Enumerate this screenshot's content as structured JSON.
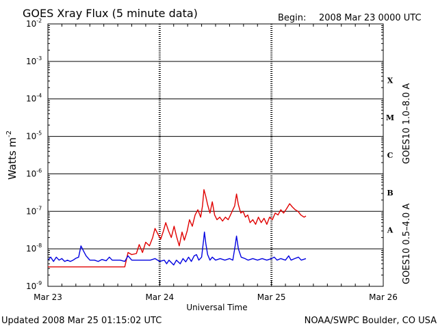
{
  "chart_data": {
    "type": "line",
    "title": "GOES Xray Flux (5 minute data)",
    "begin_label": "Begin:",
    "begin_value": "2008 Mar 23 0000 UTC",
    "xlabel": "Universal Time",
    "ylabel": "Watts m",
    "ylabel_sup": "-2",
    "y_scale": "log",
    "ylim": [
      1e-09,
      0.01
    ],
    "xlim_hours": [
      0,
      72
    ],
    "x_tick_labels": [
      "Mar 23",
      "Mar 24",
      "Mar 25",
      "Mar 26"
    ],
    "y_tick_labels": [
      {
        "base": "10",
        "exp": "-9"
      },
      {
        "base": "10",
        "exp": "-8"
      },
      {
        "base": "10",
        "exp": "-7"
      },
      {
        "base": "10",
        "exp": "-6"
      },
      {
        "base": "10",
        "exp": "-5"
      },
      {
        "base": "10",
        "exp": "-4"
      },
      {
        "base": "10",
        "exp": "-3"
      },
      {
        "base": "10",
        "exp": "-2"
      }
    ],
    "flare_classes": [
      "A",
      "B",
      "C",
      "M",
      "X"
    ],
    "grid": "horizontal at each decade, dashed vertical at day boundaries",
    "series": [
      {
        "name": "GOES10 1.0–8.0 A",
        "color": "#e00000",
        "points": [
          [
            0.0,
            3.3e-09
          ],
          [
            5.0,
            3.3e-09
          ],
          [
            10.0,
            3.3e-09
          ],
          [
            15.0,
            3.3e-09
          ],
          [
            16.5,
            3.3e-09
          ],
          [
            17.2,
            8e-09
          ],
          [
            18.0,
            7e-09
          ],
          [
            19.0,
            7.5e-09
          ],
          [
            19.6,
            1.3e-08
          ],
          [
            20.3,
            8e-09
          ],
          [
            21.0,
            1.5e-08
          ],
          [
            21.8,
            1.2e-08
          ],
          [
            22.5,
            2e-08
          ],
          [
            23.0,
            3.5e-08
          ],
          [
            23.6,
            2.5e-08
          ],
          [
            24.2,
            1.8e-08
          ],
          [
            24.8,
            3e-08
          ],
          [
            25.3,
            5e-08
          ],
          [
            25.9,
            3e-08
          ],
          [
            26.5,
            2e-08
          ],
          [
            27.1,
            4e-08
          ],
          [
            27.6,
            2.2e-08
          ],
          [
            28.2,
            1.2e-08
          ],
          [
            28.8,
            2.8e-08
          ],
          [
            29.3,
            1.7e-08
          ],
          [
            29.9,
            3e-08
          ],
          [
            30.4,
            6e-08
          ],
          [
            31.0,
            4e-08
          ],
          [
            31.6,
            8e-08
          ],
          [
            32.2,
            1.1e-07
          ],
          [
            32.8,
            7e-08
          ],
          [
            33.2,
            1.4e-07
          ],
          [
            33.5,
            3.8e-07
          ],
          [
            33.9,
            2.5e-07
          ],
          [
            34.3,
            1.5e-07
          ],
          [
            34.8,
            9e-08
          ],
          [
            35.3,
            1.8e-07
          ],
          [
            35.8,
            8e-08
          ],
          [
            36.3,
            6e-08
          ],
          [
            36.9,
            7e-08
          ],
          [
            37.5,
            5.5e-08
          ],
          [
            38.1,
            7e-08
          ],
          [
            38.7,
            6e-08
          ],
          [
            39.2,
            8e-08
          ],
          [
            39.7,
            1.1e-07
          ],
          [
            40.1,
            1.4e-07
          ],
          [
            40.5,
            2.9e-07
          ],
          [
            40.9,
            1.5e-07
          ],
          [
            41.4,
            9e-08
          ],
          [
            41.9,
            1e-07
          ],
          [
            42.4,
            7e-08
          ],
          [
            42.9,
            8e-08
          ],
          [
            43.4,
            5e-08
          ],
          [
            44.0,
            6e-08
          ],
          [
            44.6,
            4.5e-08
          ],
          [
            45.2,
            7e-08
          ],
          [
            45.8,
            5e-08
          ],
          [
            46.4,
            6.5e-08
          ],
          [
            47.0,
            4.5e-08
          ],
          [
            47.6,
            7e-08
          ],
          [
            48.2,
            6e-08
          ],
          [
            48.8,
            9e-08
          ],
          [
            49.4,
            8e-08
          ],
          [
            50.0,
            1.1e-07
          ],
          [
            50.6,
            9e-08
          ],
          [
            51.2,
            1.15e-07
          ],
          [
            51.9,
            1.6e-07
          ],
          [
            52.5,
            1.3e-07
          ],
          [
            53.1,
            1.1e-07
          ],
          [
            53.7,
            1e-07
          ],
          [
            54.3,
            8e-08
          ],
          [
            55.0,
            7e-08
          ],
          [
            55.4,
            7.5e-08
          ]
        ]
      },
      {
        "name": "GOES10 0.5–4.0 A",
        "color": "#0000e0",
        "points": [
          [
            0.0,
            5e-09
          ],
          [
            0.6,
            6e-09
          ],
          [
            1.2,
            4.6e-09
          ],
          [
            1.8,
            6e-09
          ],
          [
            2.4,
            5e-09
          ],
          [
            3.0,
            5.5e-09
          ],
          [
            3.6,
            4.6e-09
          ],
          [
            4.2,
            5e-09
          ],
          [
            4.8,
            4.6e-09
          ],
          [
            5.4,
            5e-09
          ],
          [
            6.0,
            5.6e-09
          ],
          [
            6.6,
            6e-09
          ],
          [
            7.1,
            1.2e-08
          ],
          [
            7.6,
            9e-09
          ],
          [
            8.2,
            6.5e-09
          ],
          [
            9.0,
            5e-09
          ],
          [
            10.0,
            5e-09
          ],
          [
            10.8,
            4.6e-09
          ],
          [
            11.6,
            5.2e-09
          ],
          [
            12.5,
            4.8e-09
          ],
          [
            13.2,
            6e-09
          ],
          [
            13.8,
            5e-09
          ],
          [
            14.5,
            5e-09
          ],
          [
            15.5,
            5e-09
          ],
          [
            16.5,
            4.6e-09
          ],
          [
            17.2,
            6.5e-09
          ],
          [
            18.0,
            5e-09
          ],
          [
            19.0,
            5e-09
          ],
          [
            20.0,
            5e-09
          ],
          [
            21.0,
            5e-09
          ],
          [
            22.0,
            5e-09
          ],
          [
            23.0,
            5.5e-09
          ],
          [
            24.0,
            4.6e-09
          ],
          [
            25.0,
            5e-09
          ],
          [
            25.5,
            4e-09
          ],
          [
            26.0,
            5e-09
          ],
          [
            27.0,
            3.7e-09
          ],
          [
            27.6,
            5e-09
          ],
          [
            28.4,
            4e-09
          ],
          [
            29.0,
            5.5e-09
          ],
          [
            29.6,
            4.5e-09
          ],
          [
            30.2,
            6e-09
          ],
          [
            30.8,
            4.6e-09
          ],
          [
            31.4,
            6.5e-09
          ],
          [
            31.9,
            7e-09
          ],
          [
            32.4,
            5e-09
          ],
          [
            33.0,
            6e-09
          ],
          [
            33.4,
            1.6e-08
          ],
          [
            33.6,
            2.8e-08
          ],
          [
            33.9,
            1.4e-08
          ],
          [
            34.3,
            7e-09
          ],
          [
            34.8,
            5e-09
          ],
          [
            35.3,
            6e-09
          ],
          [
            36.0,
            5e-09
          ],
          [
            37.0,
            5.5e-09
          ],
          [
            38.0,
            5e-09
          ],
          [
            39.0,
            5.5e-09
          ],
          [
            39.7,
            5e-09
          ],
          [
            40.2,
            1.2e-08
          ],
          [
            40.5,
            2.2e-08
          ],
          [
            40.9,
            1e-08
          ],
          [
            41.5,
            6e-09
          ],
          [
            42.3,
            5.5e-09
          ],
          [
            43.0,
            5e-09
          ],
          [
            44.0,
            5.5e-09
          ],
          [
            45.0,
            5e-09
          ],
          [
            46.0,
            5.5e-09
          ],
          [
            47.0,
            5e-09
          ],
          [
            48.0,
            5.5e-09
          ],
          [
            48.6,
            6e-09
          ],
          [
            49.2,
            5e-09
          ],
          [
            50.0,
            5.5e-09
          ],
          [
            51.0,
            5e-09
          ],
          [
            51.7,
            6.5e-09
          ],
          [
            52.2,
            5e-09
          ],
          [
            53.0,
            5.5e-09
          ],
          [
            53.8,
            6e-09
          ],
          [
            54.4,
            5e-09
          ],
          [
            55.4,
            5.5e-09
          ]
        ]
      }
    ]
  },
  "footer": {
    "updated": "Updated 2008 Mar 25 01:15:02 UTC",
    "source": "NOAA/SWPC Boulder, CO USA"
  }
}
